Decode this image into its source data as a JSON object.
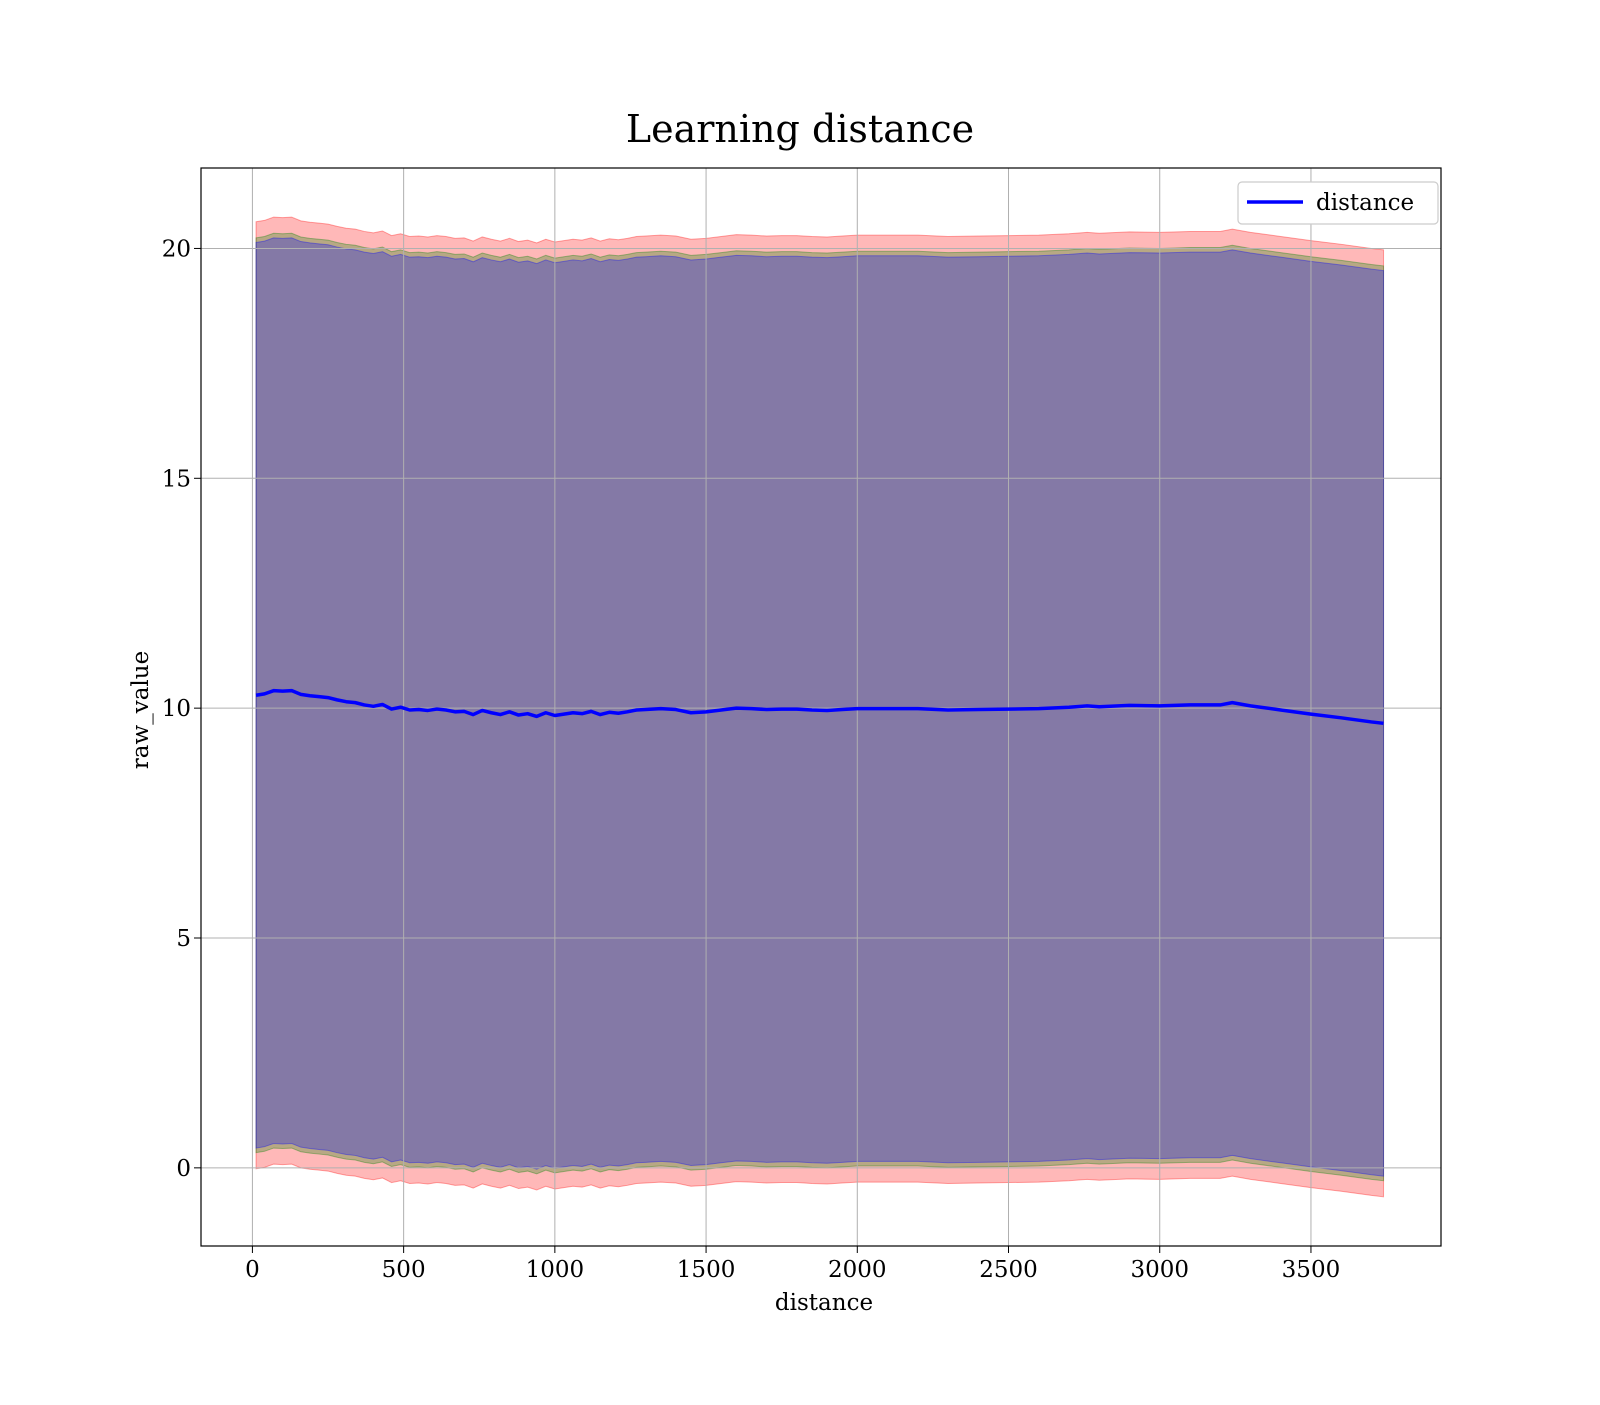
{
  "chart_data": {
    "type": "line",
    "title": "Learning distance",
    "xlabel": "distance",
    "ylabel": "raw_value",
    "xlim": [
      -170,
      3930
    ],
    "ylim": [
      -1.7,
      21.75
    ],
    "xticks": [
      0,
      500,
      1000,
      1500,
      2000,
      2500,
      3000,
      3500
    ],
    "yticks": [
      0,
      5,
      10,
      15,
      20
    ],
    "xtick_labels": [
      "0",
      "500",
      "1000",
      "1500",
      "2000",
      "2500",
      "3000",
      "3500"
    ],
    "ytick_labels": [
      "0",
      "5",
      "10",
      "15",
      "20"
    ],
    "grid": true,
    "legend": {
      "position": "top-right",
      "entries": [
        "distance"
      ]
    },
    "series": [
      {
        "name": "distance",
        "color": "#0000ff",
        "x": [
          12,
          40,
          70,
          100,
          130,
          160,
          190,
          220,
          250,
          280,
          310,
          340,
          370,
          400,
          430,
          460,
          490,
          520,
          550,
          580,
          610,
          640,
          670,
          700,
          730,
          760,
          790,
          820,
          850,
          880,
          910,
          940,
          970,
          1000,
          1030,
          1060,
          1090,
          1120,
          1150,
          1180,
          1210,
          1240,
          1270,
          1300,
          1350,
          1400,
          1450,
          1500,
          1550,
          1600,
          1650,
          1700,
          1750,
          1800,
          1850,
          1900,
          1950,
          2000,
          2100,
          2200,
          2300,
          2400,
          2500,
          2600,
          2700,
          2760,
          2800,
          2900,
          3000,
          3100,
          3150,
          3200,
          3240,
          3300,
          3400,
          3500,
          3600,
          3700,
          3740
        ],
        "values": [
          10.28,
          10.31,
          10.38,
          10.37,
          10.38,
          10.3,
          10.27,
          10.25,
          10.23,
          10.18,
          10.14,
          10.12,
          10.07,
          10.04,
          10.08,
          9.98,
          10.02,
          9.96,
          9.97,
          9.95,
          9.98,
          9.96,
          9.92,
          9.93,
          9.86,
          9.95,
          9.9,
          9.86,
          9.92,
          9.85,
          9.88,
          9.82,
          9.9,
          9.84,
          9.87,
          9.9,
          9.88,
          9.93,
          9.86,
          9.91,
          9.89,
          9.92,
          9.96,
          9.97,
          9.99,
          9.97,
          9.9,
          9.92,
          9.96,
          10.0,
          9.99,
          9.97,
          9.98,
          9.98,
          9.96,
          9.95,
          9.97,
          9.99,
          9.99,
          9.99,
          9.96,
          9.97,
          9.98,
          9.99,
          10.02,
          10.05,
          10.03,
          10.06,
          10.05,
          10.07,
          10.07,
          10.07,
          10.12,
          10.05,
          9.96,
          9.87,
          9.79,
          9.7,
          9.67
        ]
      }
    ],
    "bands": [
      {
        "name": "",
        "color": "#ff0000",
        "opacity": 0.28,
        "half_width": 10.3
      },
      {
        "name": "",
        "color": "#008000",
        "opacity": 0.28,
        "half_width": 9.95
      },
      {
        "name": "",
        "color": "#0000ff",
        "opacity": 0.28,
        "half_width": 9.85
      }
    ]
  }
}
